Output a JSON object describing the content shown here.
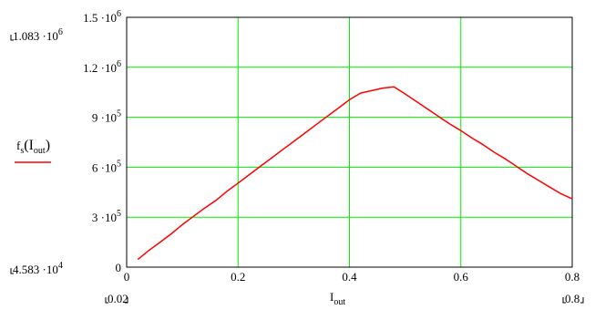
{
  "chart_data": {
    "type": "line",
    "title": "",
    "xlabel": {
      "main": "I",
      "sub": "out"
    },
    "ylabel": "",
    "legend": {
      "placement": "left",
      "entry": {
        "f": "f",
        "s": "s",
        "open": "(I",
        "sub": "out",
        "close": ")"
      },
      "color": "#ff0000"
    },
    "xlim": [
      0,
      0.8
    ],
    "ylim": [
      0,
      1500000
    ],
    "grid": true,
    "grid_color": "#00ee00",
    "x_ticks": [
      {
        "value": 0,
        "label": "0"
      },
      {
        "value": 0.2,
        "label": "0.2"
      },
      {
        "value": 0.4,
        "label": "0.4"
      },
      {
        "value": 0.6,
        "label": "0.6"
      },
      {
        "value": 0.8,
        "label": "0.8"
      }
    ],
    "y_ticks": [
      {
        "value": 0,
        "mant": "0",
        "exp": ""
      },
      {
        "value": 300000,
        "mant": "3 ·10",
        "exp": "5"
      },
      {
        "value": 600000,
        "mant": "6 ·10",
        "exp": "5"
      },
      {
        "value": 900000,
        "mant": "9 ·10",
        "exp": "5"
      },
      {
        "value": 1200000,
        "mant": "1.2 ·10",
        "exp": "6"
      },
      {
        "value": 1500000,
        "mant": "1.5 ·10",
        "exp": "6"
      }
    ],
    "range_markers": {
      "y_max": {
        "mant": "1.083 ·10",
        "exp": "6"
      },
      "y_min": {
        "mant": "4.583 ·10",
        "exp": "4"
      },
      "x_min": "0.02",
      "x_max": "0.8"
    },
    "series": [
      {
        "color": "#ff0000",
        "x": [
          0.02,
          0.04,
          0.06,
          0.08,
          0.1,
          0.12,
          0.14,
          0.16,
          0.18,
          0.2,
          0.22,
          0.24,
          0.26,
          0.28,
          0.3,
          0.32,
          0.34,
          0.36,
          0.38,
          0.4,
          0.42,
          0.44,
          0.46,
          0.48,
          0.5,
          0.52,
          0.54,
          0.56,
          0.58,
          0.6,
          0.62,
          0.64,
          0.66,
          0.68,
          0.7,
          0.72,
          0.74,
          0.76,
          0.78,
          0.8
        ],
        "y": [
          46000,
          100000,
          150000,
          200000,
          255000,
          305000,
          355000,
          400000,
          455000,
          505000,
          555000,
          605000,
          655000,
          705000,
          755000,
          805000,
          855000,
          905000,
          955000,
          1005000,
          1045000,
          1060000,
          1075000,
          1083000,
          1040000,
          995000,
          950000,
          905000,
          860000,
          820000,
          775000,
          735000,
          690000,
          650000,
          605000,
          560000,
          520000,
          480000,
          440000,
          410000
        ]
      }
    ]
  }
}
